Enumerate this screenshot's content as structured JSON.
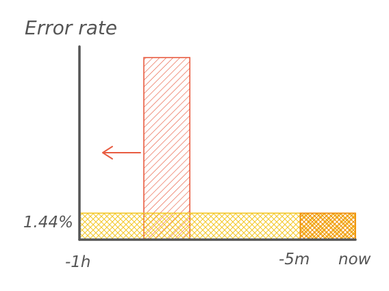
{
  "chart_data": {
    "type": "bar",
    "title": "Error rate",
    "x_ticks": [
      "-1h",
      "-5m",
      "now"
    ],
    "y_ticks": [
      "1.44%"
    ],
    "threshold": {
      "label": "1.44%",
      "value": 1.44,
      "unit": "%"
    },
    "series": [
      {
        "values": [
          {
            "x_start_min_ago": 46,
            "x_end_min_ago": 36,
            "y": 9.9
          }
        ]
      },
      {
        "values": [
          {
            "x_start_min_ago": 60,
            "x_end_min_ago": 0,
            "y": 1.44
          },
          {
            "x_start_min_ago": 12,
            "x_end_min_ago": 0,
            "y": 1.44
          }
        ]
      }
    ],
    "annotations": [
      {
        "type": "arrow",
        "direction": "left",
        "color": "#e85c41"
      }
    ],
    "ylim": [
      0,
      10.5
    ],
    "xlim_minutes": [
      -60,
      0
    ],
    "grid": false,
    "colors": {
      "axis": "#555555",
      "text": "#555555",
      "series_red": "#e85c41",
      "series_yellow": "#f3c623",
      "series_orange": "#ef8c00"
    }
  }
}
